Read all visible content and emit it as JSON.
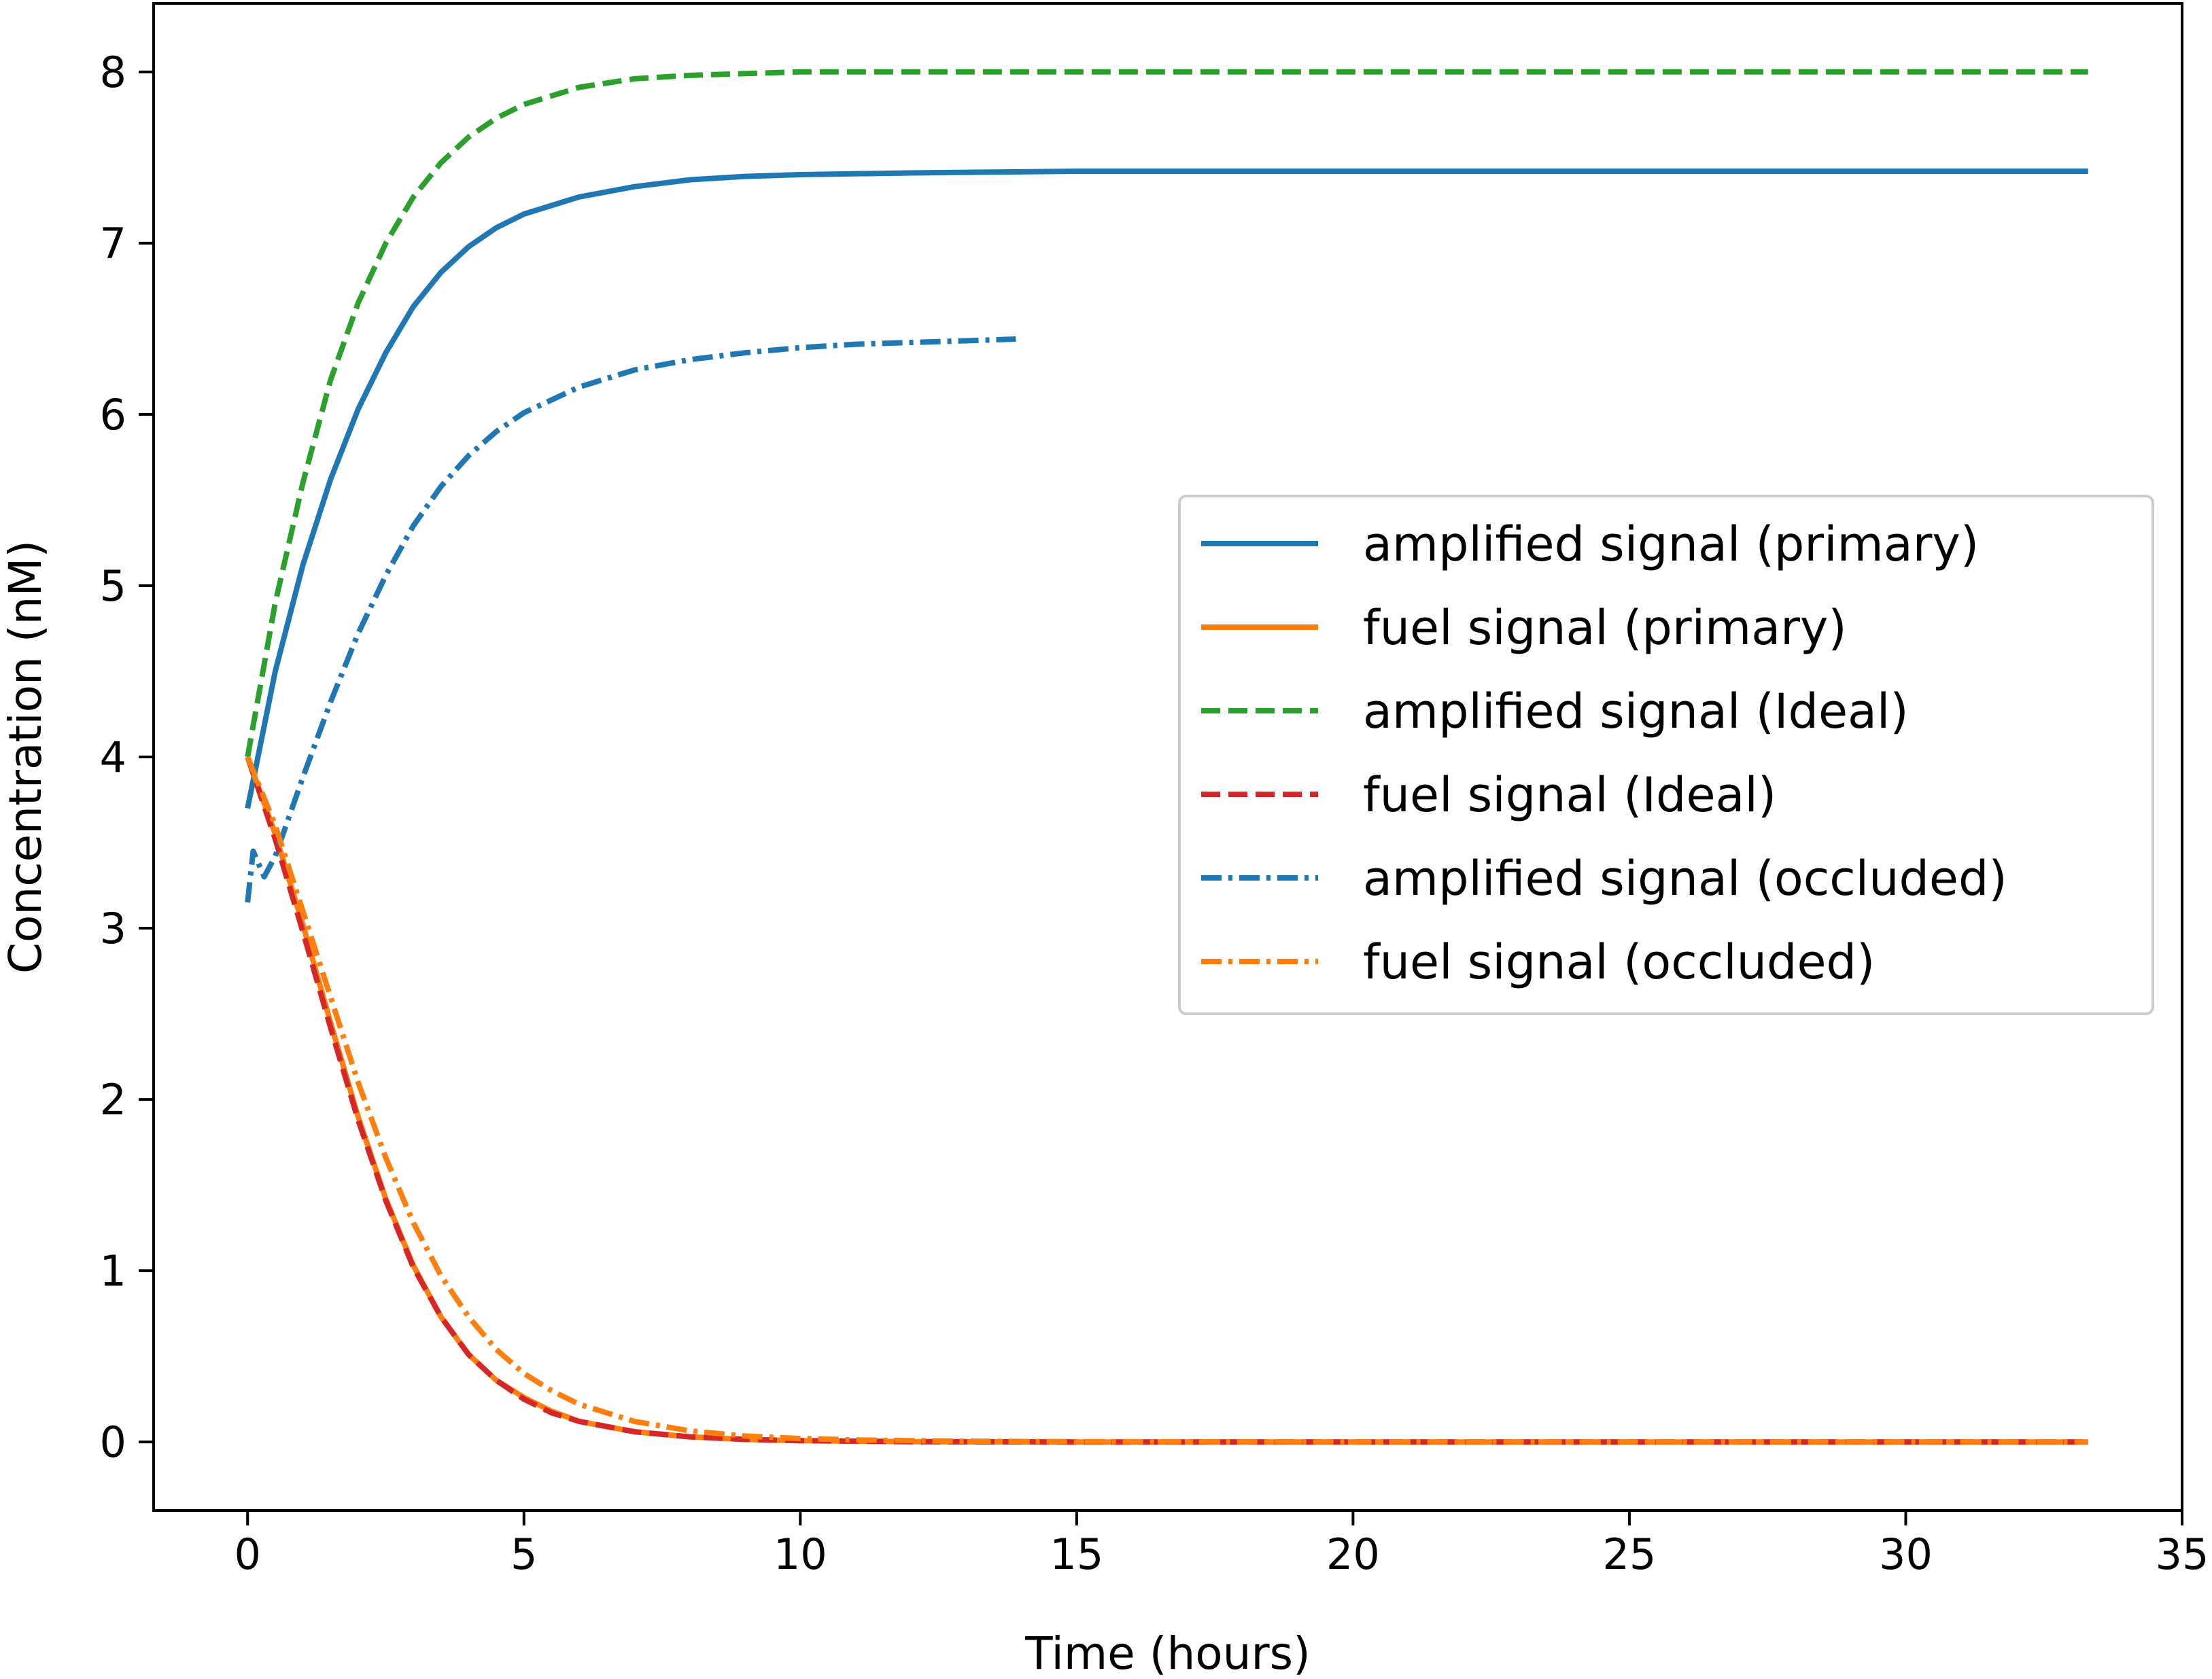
{
  "chart_data": {
    "type": "line",
    "title": "",
    "xlabel": "Time (hours)",
    "ylabel": "Concentration (nM)",
    "xlim": [
      -1.7,
      35
    ],
    "ylim": [
      -0.4,
      8.4
    ],
    "xticks": [
      0,
      5,
      10,
      15,
      20,
      25,
      30,
      35
    ],
    "yticks": [
      0,
      1,
      2,
      3,
      4,
      5,
      6,
      7,
      8
    ],
    "grid": false,
    "legend_position": "center-right",
    "series": [
      {
        "name": "amplified signal (primary)",
        "color": "#1f77b4",
        "dash": "solid",
        "x": [
          0,
          0.5,
          1,
          1.5,
          2,
          2.5,
          3,
          3.5,
          4,
          4.5,
          5,
          6,
          7,
          8,
          9,
          10,
          12,
          15,
          20,
          25,
          30,
          33.3
        ],
        "y": [
          3.7,
          4.5,
          5.12,
          5.62,
          6.03,
          6.36,
          6.63,
          6.83,
          6.98,
          7.09,
          7.17,
          7.27,
          7.33,
          7.37,
          7.39,
          7.4,
          7.41,
          7.42,
          7.42,
          7.42,
          7.42,
          7.42
        ]
      },
      {
        "name": "fuel signal (primary)",
        "color": "#ff7f0e",
        "dash": "solid",
        "x": [
          0,
          0.5,
          1,
          1.5,
          2,
          2.5,
          3,
          3.5,
          4,
          4.5,
          5,
          5.5,
          6,
          7,
          8,
          9,
          10,
          12,
          15,
          20,
          25,
          30,
          33.3
        ],
        "y": [
          4.0,
          3.55,
          3.02,
          2.45,
          1.9,
          1.42,
          1.03,
          0.73,
          0.51,
          0.36,
          0.26,
          0.18,
          0.12,
          0.06,
          0.03,
          0.015,
          0.008,
          0.002,
          0,
          0,
          0,
          0,
          0
        ]
      },
      {
        "name": "amplified signal (Ideal)",
        "color": "#2ca02c",
        "dash": "dashed",
        "x": [
          0,
          0.5,
          1,
          1.5,
          2,
          2.5,
          3,
          3.5,
          4,
          4.5,
          5,
          6,
          7,
          8,
          9,
          10,
          12,
          15,
          20,
          25,
          30,
          33.3
        ],
        "y": [
          4.0,
          4.9,
          5.6,
          6.2,
          6.65,
          7.0,
          7.27,
          7.47,
          7.62,
          7.73,
          7.81,
          7.91,
          7.96,
          7.98,
          7.99,
          8.0,
          8.0,
          8.0,
          8.0,
          8.0,
          8.0,
          8.0
        ]
      },
      {
        "name": "fuel signal (Ideal)",
        "color": "#d62728",
        "dash": "dashed",
        "x": [
          0,
          0.5,
          1,
          1.5,
          2,
          2.5,
          3,
          3.5,
          4,
          4.5,
          5,
          5.5,
          6,
          7,
          8,
          9,
          10,
          12,
          15,
          20,
          25,
          30,
          33.3
        ],
        "y": [
          4.0,
          3.52,
          2.98,
          2.42,
          1.88,
          1.41,
          1.02,
          0.73,
          0.51,
          0.36,
          0.25,
          0.17,
          0.12,
          0.06,
          0.03,
          0.015,
          0.008,
          0.002,
          0,
          0,
          0,
          0,
          0
        ]
      },
      {
        "name": "amplified signal (occluded)",
        "color": "#1f77b4",
        "dash": "dashdot",
        "x": [
          0,
          0.1,
          0.3,
          0.5,
          1,
          1.5,
          2,
          2.5,
          3,
          3.5,
          4,
          4.5,
          5,
          6,
          7,
          8,
          9,
          10,
          11,
          12,
          13,
          13.9
        ],
        "y": [
          3.15,
          3.45,
          3.3,
          3.42,
          3.88,
          4.32,
          4.72,
          5.06,
          5.35,
          5.58,
          5.76,
          5.9,
          6.01,
          6.16,
          6.26,
          6.32,
          6.36,
          6.39,
          6.41,
          6.42,
          6.43,
          6.44
        ]
      },
      {
        "name": "fuel signal (occluded)",
        "color": "#ff7f0e",
        "dash": "dashdot",
        "x": [
          0,
          0.5,
          1,
          1.5,
          2,
          2.5,
          3,
          3.5,
          4,
          4.5,
          5,
          5.5,
          6,
          7,
          8,
          9,
          10,
          11,
          12,
          13,
          14,
          15,
          20,
          25,
          30,
          33.3
        ],
        "y": [
          4.0,
          3.6,
          3.1,
          2.6,
          2.1,
          1.66,
          1.28,
          0.97,
          0.73,
          0.54,
          0.4,
          0.3,
          0.22,
          0.12,
          0.065,
          0.035,
          0.02,
          0.012,
          0.008,
          0.005,
          0.003,
          0.002,
          0,
          0,
          0,
          0
        ]
      }
    ]
  }
}
